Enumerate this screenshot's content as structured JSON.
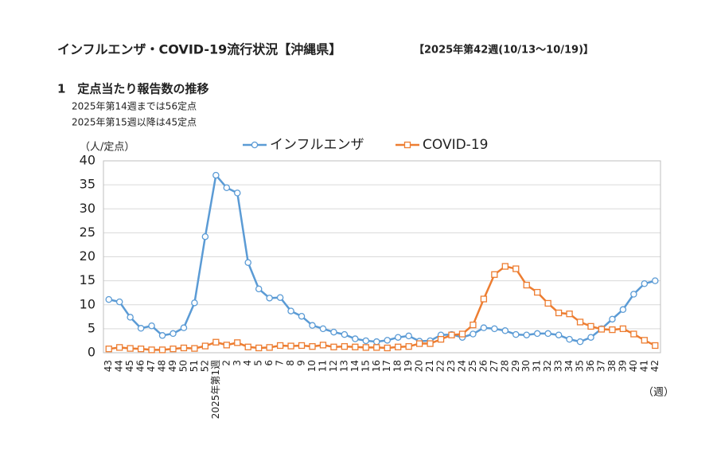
{
  "header": {
    "title": "インフルエンザ・COVID-19流行状況【沖縄県】",
    "period": "【2025年第42週(10/13～10/19)】"
  },
  "section": {
    "heading": "1　定点当たり報告数の推移",
    "notes": [
      "2025年第14週までは56定点",
      "2025年第15週以降は45定点"
    ]
  },
  "chart_data": {
    "type": "line",
    "y_label": "（人/定点）",
    "x_label": "（週）",
    "categories": [
      "43",
      "44",
      "45",
      "46",
      "47",
      "48",
      "49",
      "50",
      "51",
      "52",
      "2025年第1週",
      "2",
      "3",
      "4",
      "5",
      "6",
      "7",
      "8",
      "9",
      "10",
      "11",
      "12",
      "13",
      "14",
      "15",
      "16",
      "17",
      "18",
      "19",
      "20",
      "21",
      "22",
      "23",
      "24",
      "25",
      "26",
      "27",
      "28",
      "29",
      "30",
      "31",
      "32",
      "33",
      "34",
      "35",
      "36",
      "37",
      "38",
      "39",
      "40",
      "41",
      "42"
    ],
    "series": [
      {
        "name": "インフルエンザ",
        "color": "#5b9bd5",
        "marker": "circle",
        "values": [
          11.1,
          10.6,
          7.4,
          5.1,
          5.6,
          3.6,
          4.0,
          5.2,
          10.4,
          24.2,
          37.0,
          34.4,
          33.3,
          18.8,
          13.3,
          11.4,
          11.5,
          8.7,
          7.6,
          5.7,
          5.0,
          4.3,
          3.8,
          2.9,
          2.5,
          2.3,
          2.6,
          3.2,
          3.5,
          2.4,
          2.5,
          3.7,
          3.8,
          3.2,
          3.9,
          5.2,
          5.0,
          4.6,
          3.8,
          3.7,
          4.0,
          4.0,
          3.7,
          2.8,
          2.3,
          3.2,
          5.0,
          7.0,
          9.0,
          12.2,
          14.4,
          15.0
        ]
      },
      {
        "name": "COVID-19",
        "color": "#ed7d31",
        "marker": "square",
        "values": [
          0.8,
          1.1,
          0.9,
          0.8,
          0.6,
          0.6,
          0.8,
          1.0,
          0.9,
          1.4,
          2.2,
          1.6,
          2.1,
          1.2,
          1.0,
          1.1,
          1.5,
          1.4,
          1.5,
          1.3,
          1.6,
          1.2,
          1.3,
          1.2,
          1.1,
          1.1,
          1.0,
          1.2,
          1.3,
          1.9,
          1.9,
          2.8,
          3.7,
          3.9,
          5.8,
          11.2,
          16.3,
          18.0,
          17.5,
          14.1,
          12.6,
          10.3,
          8.3,
          8.1,
          6.4,
          5.5,
          4.9,
          4.8,
          5.0,
          3.9,
          2.6,
          1.5
        ]
      }
    ],
    "ylim": [
      0,
      40
    ],
    "yticks": [
      0,
      5,
      10,
      15,
      20,
      25,
      30,
      35,
      40
    ],
    "grid": true
  }
}
